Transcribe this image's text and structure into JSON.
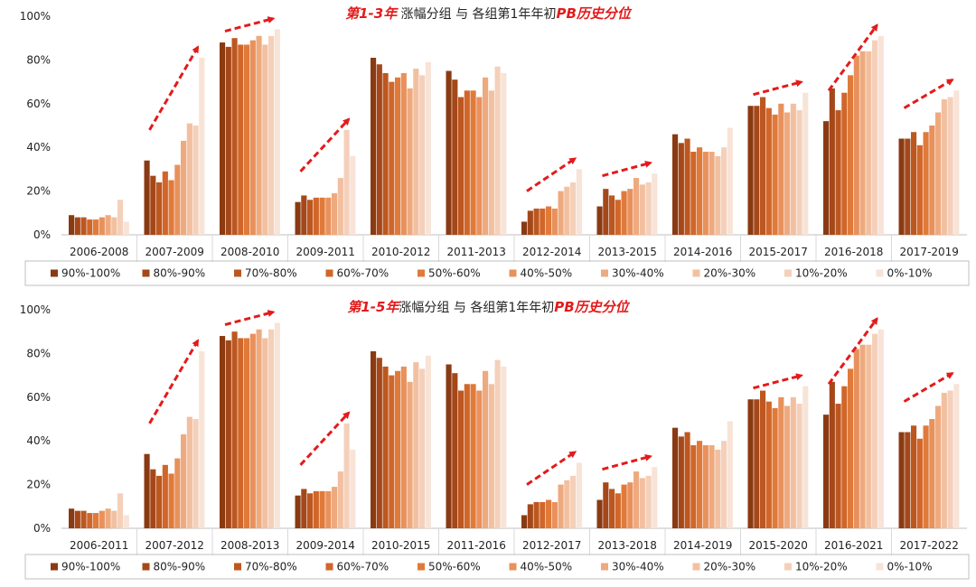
{
  "colors": [
    "#8a3a12",
    "#a4481a",
    "#bc5720",
    "#d1662a",
    "#e07a3a",
    "#e8915c",
    "#eeaa7e",
    "#f2c0a0",
    "#f4d0ba",
    "#f8e3d7"
  ],
  "arrow_color": "#e31b1b",
  "chart_data": [
    {
      "type": "bar",
      "title_parts": [
        {
          "text": "第1-3年",
          "style": "red"
        },
        {
          "text": " 涨幅分组 与 各组第1年年初",
          "style": "black"
        },
        {
          "text": "PB历史分位",
          "style": "red"
        }
      ],
      "ylim": [
        0,
        100
      ],
      "yticks": [
        "0%",
        "20%",
        "40%",
        "60%",
        "80%",
        "100%"
      ],
      "grid": false,
      "legend_position": "bottom",
      "categories": [
        "2006-2008",
        "2007-2009",
        "2008-2010",
        "2009-2011",
        "2010-2012",
        "2011-2013",
        "2012-2014",
        "2013-2015",
        "2014-2016",
        "2015-2017",
        "2016-2018",
        "2017-2019"
      ],
      "arrows": [
        "2007-2009",
        "2008-2010",
        "2009-2011",
        "2012-2014",
        "2013-2015",
        "2015-2017",
        "2016-2018",
        "2017-2019"
      ],
      "series": [
        {
          "name": "90%-100%",
          "values": [
            9,
            34,
            88,
            15,
            81,
            75,
            6,
            13,
            46,
            59,
            52,
            44
          ]
        },
        {
          "name": "80%-90%",
          "values": [
            8,
            27,
            86,
            18,
            78,
            71,
            11,
            21,
            42,
            59,
            67,
            44
          ]
        },
        {
          "name": "70%-80%",
          "values": [
            8,
            24,
            90,
            16,
            74,
            63,
            12,
            18,
            44,
            63,
            57,
            47
          ]
        },
        {
          "name": "60%-70%",
          "values": [
            7,
            29,
            87,
            17,
            70,
            66,
            12,
            16,
            38,
            58,
            65,
            41
          ]
        },
        {
          "name": "50%-60%",
          "values": [
            7,
            25,
            87,
            17,
            72,
            66,
            13,
            20,
            40,
            55,
            73,
            47
          ]
        },
        {
          "name": "40%-50%",
          "values": [
            8,
            32,
            89,
            17,
            74,
            63,
            12,
            21,
            38,
            60,
            82,
            50
          ]
        },
        {
          "name": "30%-40%",
          "values": [
            9,
            43,
            91,
            19,
            67,
            72,
            20,
            26,
            38,
            56,
            84,
            56
          ]
        },
        {
          "name": "20%-30%",
          "values": [
            8,
            51,
            87,
            26,
            76,
            66,
            22,
            23,
            36,
            60,
            84,
            62
          ]
        },
        {
          "name": "10%-20%",
          "values": [
            16,
            50,
            91,
            48,
            73,
            77,
            24,
            24,
            40,
            57,
            89,
            63
          ]
        },
        {
          "name": "0%-10%",
          "values": [
            6,
            81,
            94,
            36,
            79,
            74,
            30,
            28,
            49,
            65,
            91,
            66
          ]
        }
      ]
    },
    {
      "type": "bar",
      "title_parts": [
        {
          "text": "第1-5年",
          "style": "red"
        },
        {
          "text": "涨幅分组 与 各组第1年年初",
          "style": "black"
        },
        {
          "text": "PB历史分位",
          "style": "red"
        }
      ],
      "ylim": [
        0,
        100
      ],
      "yticks": [
        "0%",
        "20%",
        "40%",
        "60%",
        "80%",
        "100%"
      ],
      "grid": false,
      "legend_position": "bottom",
      "categories": [
        "2006-2011",
        "2007-2012",
        "2008-2013",
        "2009-2014",
        "2010-2015",
        "2011-2016",
        "2012-2017",
        "2013-2018",
        "2014-2019",
        "2015-2020",
        "2016-2021",
        "2017-2022"
      ],
      "arrows": [
        "2007-2012",
        "2008-2013",
        "2009-2014",
        "2012-2017",
        "2013-2018",
        "2015-2020",
        "2016-2021",
        "2017-2022"
      ],
      "series": [
        {
          "name": "90%-100%",
          "values": [
            9,
            34,
            88,
            15,
            81,
            75,
            6,
            13,
            46,
            59,
            52,
            44
          ]
        },
        {
          "name": "80%-90%",
          "values": [
            8,
            27,
            86,
            18,
            78,
            71,
            11,
            21,
            42,
            59,
            67,
            44
          ]
        },
        {
          "name": "70%-80%",
          "values": [
            8,
            24,
            90,
            16,
            74,
            63,
            12,
            18,
            44,
            63,
            57,
            47
          ]
        },
        {
          "name": "60%-70%",
          "values": [
            7,
            29,
            87,
            17,
            70,
            66,
            12,
            16,
            38,
            58,
            65,
            41
          ]
        },
        {
          "name": "50%-60%",
          "values": [
            7,
            25,
            87,
            17,
            72,
            66,
            13,
            20,
            40,
            55,
            73,
            47
          ]
        },
        {
          "name": "40%-50%",
          "values": [
            8,
            32,
            89,
            17,
            74,
            63,
            12,
            21,
            38,
            60,
            82,
            50
          ]
        },
        {
          "name": "30%-40%",
          "values": [
            9,
            43,
            91,
            19,
            67,
            72,
            20,
            26,
            38,
            56,
            84,
            56
          ]
        },
        {
          "name": "20%-30%",
          "values": [
            8,
            51,
            87,
            26,
            76,
            66,
            22,
            23,
            36,
            60,
            84,
            62
          ]
        },
        {
          "name": "10%-20%",
          "values": [
            16,
            50,
            91,
            48,
            73,
            77,
            24,
            24,
            40,
            57,
            89,
            63
          ]
        },
        {
          "name": "0%-10%",
          "values": [
            6,
            81,
            94,
            36,
            79,
            74,
            30,
            28,
            49,
            65,
            91,
            66
          ]
        }
      ]
    }
  ]
}
